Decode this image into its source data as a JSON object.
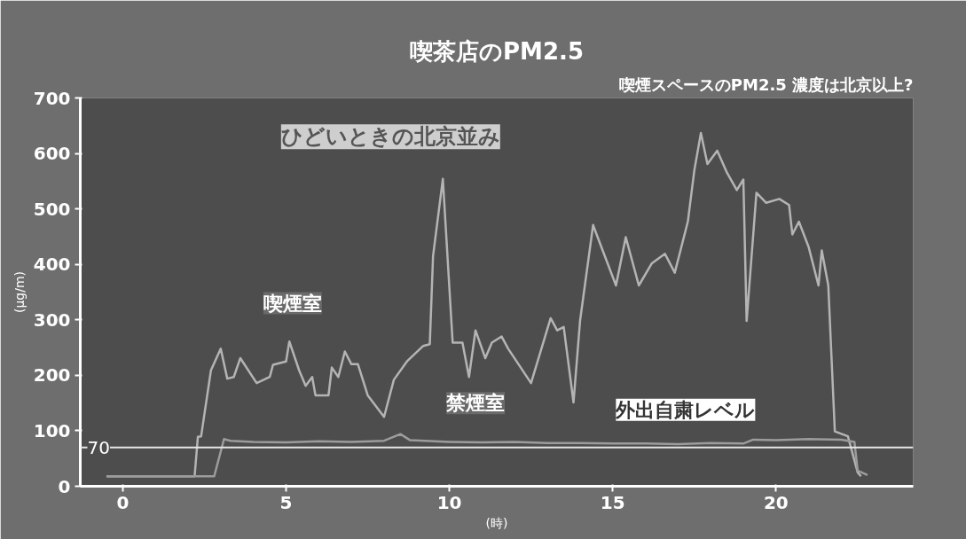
{
  "chart_data": {
    "type": "line",
    "title": "喫茶店のPM2.5",
    "subtitle": "喫煙スペースのPM2.5 濃度は北京以上?",
    "xlabel": "(時)",
    "ylabel": "(μg/m)",
    "xlim": [
      -1.3,
      24.2
    ],
    "ylim": [
      0,
      700
    ],
    "xticks": [
      0,
      5,
      10,
      15,
      20
    ],
    "yticks": [
      0,
      100,
      200,
      300,
      400,
      500,
      600,
      700
    ],
    "grid": false,
    "legend": false,
    "marker": "none",
    "line_style": "solid",
    "series": [
      {
        "name": "喫煙室",
        "color": "#b4b4b4",
        "x": [
          -0.5,
          2.2,
          2.3,
          2.4,
          2.7,
          3.0,
          3.2,
          3.4,
          3.6,
          4.1,
          4.5,
          4.6,
          5.0,
          5.1,
          5.4,
          5.6,
          5.8,
          5.9,
          6.3,
          6.4,
          6.6,
          6.8,
          7.0,
          7.2,
          7.5,
          8.0,
          8.3,
          8.7,
          9.2,
          9.4,
          9.5,
          9.8,
          10.1,
          10.4,
          10.6,
          10.8,
          11.1,
          11.3,
          11.6,
          11.8,
          12.5,
          13.1,
          13.3,
          13.5,
          13.8,
          14.0,
          14.4,
          14.5,
          15.1,
          15.4,
          15.8,
          16.2,
          16.6,
          16.9,
          17.3,
          17.5,
          17.7,
          17.9,
          18.2,
          18.5,
          18.8,
          19.0,
          19.1,
          19.4,
          19.7,
          20.1,
          20.4,
          20.5,
          20.7,
          21.0,
          21.3,
          21.4,
          21.6,
          21.8,
          22.2,
          22.5,
          22.6
        ],
        "values": [
          18,
          18,
          89,
          90,
          209,
          248,
          194,
          197,
          231,
          186,
          197,
          219,
          225,
          261,
          209,
          181,
          197,
          164,
          164,
          214,
          197,
          243,
          220,
          220,
          164,
          125,
          192,
          225,
          253,
          256,
          415,
          554,
          259,
          259,
          197,
          281,
          231,
          259,
          270,
          248,
          186,
          303,
          281,
          287,
          151,
          298,
          471,
          455,
          362,
          449,
          362,
          402,
          419,
          385,
          477,
          570,
          637,
          581,
          605,
          565,
          534,
          553,
          298,
          529,
          511,
          518,
          507,
          454,
          477,
          431,
          362,
          425,
          362,
          99,
          90,
          25,
          18
        ]
      },
      {
        "name": "禁煙室",
        "color": "#9c9c9c",
        "x": [
          -0.5,
          2.8,
          3.1,
          3.3,
          4,
          5,
          6,
          7,
          8,
          8.5,
          8.8,
          10,
          11,
          12,
          13,
          14,
          15,
          16,
          17,
          18,
          19,
          19.3,
          20,
          21,
          22,
          22.4,
          22.5,
          22.8
        ],
        "values": [
          18,
          18,
          85,
          82,
          80,
          79,
          81,
          80,
          82,
          94,
          83,
          80,
          79,
          80,
          78,
          78,
          77,
          77,
          76,
          78,
          77,
          84,
          83,
          85,
          84,
          80,
          28,
          20
        ]
      }
    ],
    "ref_lines": [
      {
        "axis": "y",
        "value": 70,
        "label": "70",
        "color": "#e6e6e6"
      }
    ],
    "annotations": [
      "ひどいときの北京並み",
      {
        "text": "外出自粛レベル",
        "x": 17,
        "y": 70
      }
    ]
  }
}
